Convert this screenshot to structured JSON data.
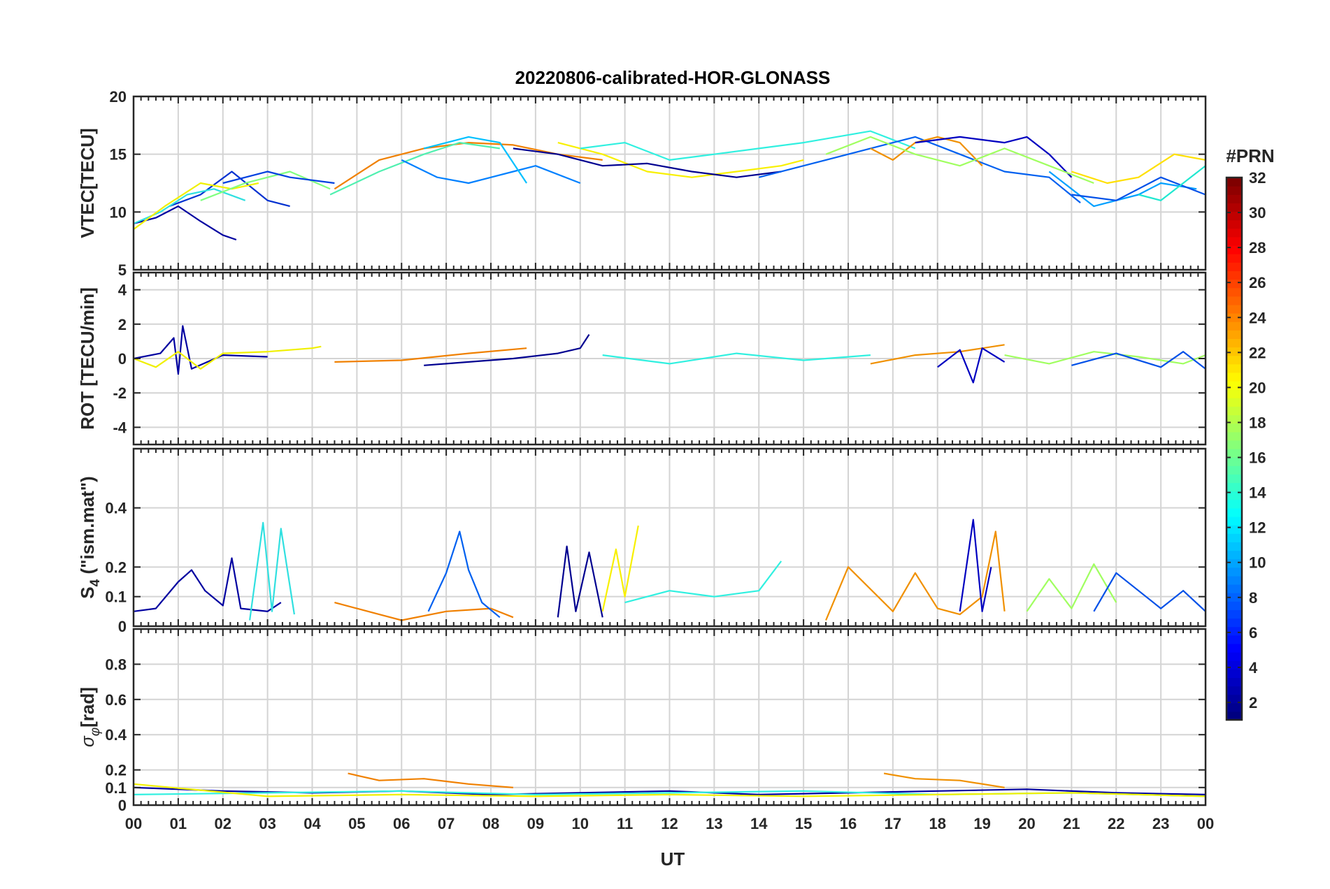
{
  "chart_data": {
    "type": "line",
    "title": "20220806-calibrated-HOR-GLONASS",
    "xlabel": "UT",
    "x_ticks": [
      "00",
      "01",
      "02",
      "03",
      "04",
      "05",
      "06",
      "07",
      "08",
      "09",
      "10",
      "11",
      "12",
      "13",
      "14",
      "15",
      "16",
      "17",
      "18",
      "19",
      "20",
      "21",
      "22",
      "23",
      "00"
    ],
    "xlim_hours": [
      0,
      24
    ],
    "grid": true,
    "colorbar": {
      "label": "#PRN",
      "range": [
        1,
        32
      ],
      "ticks": [
        "2",
        "4",
        "6",
        "8",
        "10",
        "12",
        "14",
        "16",
        "18",
        "20",
        "22",
        "24",
        "26",
        "28",
        "30",
        "32"
      ],
      "colormap": "jet"
    },
    "panels": [
      {
        "id": "vtec",
        "ylabel": "VTEC[TECU]",
        "ylim": [
          5,
          20
        ],
        "y_ticks": [
          "5",
          "10",
          "15",
          "20"
        ],
        "y_tick_values": [
          5,
          10,
          15,
          20
        ],
        "series": [
          {
            "prn": 2,
            "color": "#0000A0",
            "x": [
              0.0,
              0.5,
              1.0,
              1.5,
              2.0,
              2.3
            ],
            "y": [
              9.0,
              9.5,
              10.5,
              9.2,
              8.0,
              7.6
            ]
          },
          {
            "prn": 5,
            "color": "#0030D0",
            "x": [
              0.8,
              1.5,
              2.2,
              3.0,
              3.5
            ],
            "y": [
              10.5,
              11.5,
              13.5,
              11.0,
              10.5
            ]
          },
          {
            "prn": 12,
            "color": "#30E0E0",
            "x": [
              0.0,
              0.6,
              1.2,
              1.8,
              2.5
            ],
            "y": [
              9.0,
              10.0,
              11.5,
              12.0,
              11.0
            ]
          },
          {
            "prn": 19,
            "color": "#F0F000",
            "x": [
              0.0,
              0.7,
              1.5,
              2.2,
              2.8
            ],
            "y": [
              8.5,
              10.5,
              12.5,
              12.0,
              12.5
            ]
          },
          {
            "prn": 16,
            "color": "#80FF80",
            "x": [
              1.5,
              2.5,
              3.5,
              4.4
            ],
            "y": [
              11.0,
              12.5,
              13.5,
              12.0
            ]
          },
          {
            "prn": 4,
            "color": "#0040E0",
            "x": [
              2.0,
              3.0,
              3.5,
              4.5
            ],
            "y": [
              12.5,
              13.5,
              13.0,
              12.5
            ]
          },
          {
            "prn": 24,
            "color": "#F08000",
            "x": [
              4.5,
              5.5,
              6.5,
              7.5,
              8.5,
              9.5,
              10.5
            ],
            "y": [
              12.0,
              14.5,
              15.5,
              16.0,
              15.8,
              15.0,
              14.5
            ]
          },
          {
            "prn": 15,
            "color": "#50F0B0",
            "x": [
              4.4,
              5.5,
              6.5,
              7.3,
              8.2
            ],
            "y": [
              11.5,
              13.5,
              15.0,
              16.0,
              15.5
            ]
          },
          {
            "prn": 9,
            "color": "#0080FF",
            "x": [
              6.0,
              6.8,
              7.5,
              8.5,
              9.0,
              10.0
            ],
            "y": [
              14.5,
              13.0,
              12.5,
              13.5,
              14.0,
              12.5
            ]
          },
          {
            "prn": 11,
            "color": "#00C0FF",
            "x": [
              6.5,
              7.5,
              8.2,
              8.8
            ],
            "y": [
              15.5,
              16.5,
              16.0,
              12.5
            ]
          },
          {
            "prn": 20,
            "color": "#F8F000",
            "x": [
              9.5,
              10.5,
              11.5,
              12.5,
              13.5,
              14.5,
              15.0
            ],
            "y": [
              16.0,
              15.0,
              13.5,
              13.0,
              13.5,
              14.0,
              14.5
            ]
          },
          {
            "prn": 13,
            "color": "#30F0E0",
            "x": [
              10.0,
              11.0,
              12.0,
              13.0,
              14.0,
              15.0,
              16.5,
              17.5
            ],
            "y": [
              15.5,
              16.0,
              14.5,
              15.0,
              15.5,
              16.0,
              17.0,
              15.5
            ]
          },
          {
            "prn": 1,
            "color": "#000090",
            "x": [
              8.5,
              9.5,
              10.5,
              11.5,
              12.5,
              13.5,
              14.5
            ],
            "y": [
              15.5,
              15.0,
              14.0,
              14.2,
              13.5,
              13.0,
              13.5
            ]
          },
          {
            "prn": 7,
            "color": "#0060F0",
            "x": [
              14.0,
              15.5,
              16.5,
              17.5,
              18.5,
              19.5,
              20.5,
              21.2
            ],
            "y": [
              13.0,
              14.5,
              15.5,
              16.5,
              15.0,
              13.5,
              13.0,
              10.8
            ]
          },
          {
            "prn": 23,
            "color": "#F09000",
            "x": [
              16.5,
              17.0,
              17.5,
              18.0,
              18.5,
              19.0
            ],
            "y": [
              15.5,
              14.5,
              16.0,
              16.5,
              16.0,
              14.0
            ]
          },
          {
            "prn": 3,
            "color": "#0000C0",
            "x": [
              17.5,
              18.5,
              19.5,
              20.0,
              20.5,
              21.0
            ],
            "y": [
              16.0,
              16.5,
              16.0,
              16.5,
              15.0,
              13.0
            ]
          },
          {
            "prn": 17,
            "color": "#A0FF60",
            "x": [
              15.5,
              16.5,
              17.5,
              18.5,
              19.5,
              20.5,
              21.5
            ],
            "y": [
              15.0,
              16.5,
              15.0,
              14.0,
              15.5,
              14.0,
              12.5
            ]
          },
          {
            "prn": 10,
            "color": "#00A0FF",
            "x": [
              20.5,
              21.5,
              22.5,
              23.0,
              23.8
            ],
            "y": [
              13.5,
              10.5,
              11.5,
              12.5,
              12.0
            ]
          },
          {
            "prn": 6,
            "color": "#0050E8",
            "x": [
              21.0,
              22.0,
              23.0,
              24.0
            ],
            "y": [
              11.5,
              11.0,
              13.0,
              11.5
            ]
          },
          {
            "prn": 21,
            "color": "#FFE000",
            "x": [
              21.0,
              21.8,
              22.5,
              23.3,
              24.0
            ],
            "y": [
              13.5,
              12.5,
              13.0,
              15.0,
              14.5
            ]
          },
          {
            "prn": 14,
            "color": "#20E8D0",
            "x": [
              22.5,
              23.0,
              23.5,
              24.0
            ],
            "y": [
              11.5,
              11.0,
              12.5,
              14.0
            ]
          }
        ]
      },
      {
        "id": "rot",
        "ylabel": "ROT [TECU/min]",
        "ylim": [
          -5,
          5
        ],
        "y_ticks": [
          "-4",
          "-2",
          "0",
          "2",
          "4"
        ],
        "y_tick_values": [
          -4,
          -2,
          0,
          2,
          4
        ],
        "series": [
          {
            "prn": 2,
            "color": "#0000A0",
            "x": [
              0.0,
              0.6,
              0.9,
              1.0,
              1.1,
              1.3,
              2.0,
              3.0
            ],
            "y": [
              0.0,
              0.3,
              1.2,
              -0.9,
              1.9,
              -0.6,
              0.2,
              0.1
            ]
          },
          {
            "prn": 19,
            "color": "#F0F000",
            "x": [
              0.0,
              0.5,
              1.0,
              1.5,
              2.0,
              3.0,
              4.0,
              4.2
            ],
            "y": [
              0.0,
              -0.5,
              0.4,
              -0.6,
              0.3,
              0.4,
              0.6,
              0.7
            ]
          },
          {
            "prn": 24,
            "color": "#F08000",
            "x": [
              4.5,
              6.0,
              7.5,
              8.8
            ],
            "y": [
              -0.2,
              -0.1,
              0.3,
              0.6
            ]
          },
          {
            "prn": 1,
            "color": "#000090",
            "x": [
              6.5,
              7.5,
              8.5,
              9.5,
              10.0,
              10.2
            ],
            "y": [
              -0.4,
              -0.2,
              0.0,
              0.3,
              0.6,
              1.4
            ]
          },
          {
            "prn": 13,
            "color": "#30F0E0",
            "x": [
              10.5,
              12.0,
              13.5,
              15.0,
              16.5
            ],
            "y": [
              0.2,
              -0.3,
              0.3,
              -0.1,
              0.2
            ]
          },
          {
            "prn": 23,
            "color": "#F09000",
            "x": [
              16.5,
              17.5,
              18.5,
              19.5
            ],
            "y": [
              -0.3,
              0.2,
              0.4,
              0.8
            ]
          },
          {
            "prn": 3,
            "color": "#0000C0",
            "x": [
              18.0,
              18.5,
              18.8,
              19.0,
              19.5
            ],
            "y": [
              -0.5,
              0.5,
              -1.4,
              0.6,
              -0.2
            ]
          },
          {
            "prn": 17,
            "color": "#A0FF60",
            "x": [
              19.5,
              20.5,
              21.5,
              22.5,
              23.5,
              24.0
            ],
            "y": [
              0.2,
              -0.3,
              0.4,
              0.1,
              -0.3,
              0.2
            ]
          },
          {
            "prn": 6,
            "color": "#0050E8",
            "x": [
              21.0,
              22.0,
              23.0,
              23.5,
              24.0
            ],
            "y": [
              -0.4,
              0.3,
              -0.5,
              0.4,
              -0.6
            ]
          }
        ]
      },
      {
        "id": "s4",
        "ylabel": "S4 (\"ism.mat\")",
        "ylim": [
          0,
          0.6
        ],
        "y_ticks": [
          "0",
          "0.1",
          "0.2",
          "0.4"
        ],
        "y_tick_values": [
          0,
          0.1,
          0.2,
          0.4
        ],
        "series": [
          {
            "prn": 2,
            "color": "#0000A0",
            "x": [
              0.0,
              0.5,
              1.0,
              1.3,
              1.6,
              2.0,
              2.2,
              2.4,
              3.0,
              3.3
            ],
            "y": [
              0.05,
              0.06,
              0.15,
              0.19,
              0.12,
              0.07,
              0.23,
              0.06,
              0.05,
              0.08
            ]
          },
          {
            "prn": 12,
            "color": "#30E0E0",
            "x": [
              2.6,
              2.9,
              3.1,
              3.3,
              3.6
            ],
            "y": [
              0.02,
              0.35,
              0.05,
              0.33,
              0.04
            ]
          },
          {
            "prn": 24,
            "color": "#F08000",
            "x": [
              4.5,
              5.0,
              5.5,
              6.0,
              7.0,
              8.0,
              8.5
            ],
            "y": [
              0.08,
              0.06,
              0.04,
              0.02,
              0.05,
              0.06,
              0.03
            ]
          },
          {
            "prn": 7,
            "color": "#0060F0",
            "x": [
              6.6,
              7.0,
              7.3,
              7.5,
              7.8,
              8.2
            ],
            "y": [
              0.05,
              0.18,
              0.32,
              0.19,
              0.08,
              0.03
            ]
          },
          {
            "prn": 1,
            "color": "#000090",
            "x": [
              9.5,
              9.7,
              9.9,
              10.2,
              10.5
            ],
            "y": [
              0.03,
              0.27,
              0.05,
              0.25,
              0.03
            ]
          },
          {
            "prn": 20,
            "color": "#F8F000",
            "x": [
              10.5,
              10.8,
              11.0,
              11.3
            ],
            "y": [
              0.05,
              0.26,
              0.1,
              0.34
            ]
          },
          {
            "prn": 13,
            "color": "#30F0E0",
            "x": [
              11.0,
              12.0,
              13.0,
              14.0,
              14.5
            ],
            "y": [
              0.08,
              0.12,
              0.1,
              0.12,
              0.22
            ]
          },
          {
            "prn": 23,
            "color": "#F09000",
            "x": [
              15.5,
              16.0,
              17.0,
              17.5,
              18.0,
              18.5,
              19.0,
              19.3,
              19.5
            ],
            "y": [
              0.02,
              0.2,
              0.05,
              0.18,
              0.06,
              0.04,
              0.1,
              0.32,
              0.05
            ]
          },
          {
            "prn": 3,
            "color": "#0000C0",
            "x": [
              18.5,
              18.8,
              19.0,
              19.2
            ],
            "y": [
              0.05,
              0.36,
              0.05,
              0.2
            ]
          },
          {
            "prn": 17,
            "color": "#A0FF60",
            "x": [
              20.0,
              20.5,
              21.0,
              21.5,
              22.0
            ],
            "y": [
              0.05,
              0.16,
              0.06,
              0.21,
              0.08
            ]
          },
          {
            "prn": 6,
            "color": "#0050E8",
            "x": [
              21.5,
              22.0,
              22.5,
              23.0,
              23.5,
              24.0
            ],
            "y": [
              0.05,
              0.18,
              0.12,
              0.06,
              0.12,
              0.05
            ]
          }
        ]
      },
      {
        "id": "sigma",
        "ylabel": "σφ[rad]",
        "ylim": [
          0,
          1
        ],
        "y_ticks": [
          "0",
          "0.1",
          "0.2",
          "0.4",
          "0.6",
          "0.8"
        ],
        "y_tick_values": [
          0,
          0.1,
          0.2,
          0.4,
          0.6,
          0.8
        ],
        "series": [
          {
            "prn": 2,
            "color": "#0000A0",
            "x": [
              0.0,
              2.0,
              4.0,
              6.0,
              8.0,
              10.0,
              12.0,
              14.0,
              16.0,
              18.0,
              20.0,
              22.0,
              24.0
            ],
            "y": [
              0.1,
              0.08,
              0.07,
              0.08,
              0.06,
              0.07,
              0.08,
              0.06,
              0.07,
              0.08,
              0.09,
              0.07,
              0.06
            ]
          },
          {
            "prn": 24,
            "color": "#F08000",
            "x": [
              4.8,
              5.5,
              6.5,
              7.5,
              8.5
            ],
            "y": [
              0.18,
              0.14,
              0.15,
              0.12,
              0.1
            ]
          },
          {
            "prn": 23,
            "color": "#F09000",
            "x": [
              16.8,
              17.5,
              18.5,
              19.5
            ],
            "y": [
              0.18,
              0.15,
              0.14,
              0.1
            ]
          },
          {
            "prn": 13,
            "color": "#30F0E0",
            "x": [
              0.0,
              3.0,
              6.0,
              9.0,
              12.0,
              15.0,
              18.0,
              21.0,
              24.0
            ],
            "y": [
              0.06,
              0.07,
              0.08,
              0.06,
              0.07,
              0.08,
              0.06,
              0.07,
              0.05
            ]
          },
          {
            "prn": 19,
            "color": "#F0F000",
            "x": [
              0.0,
              3.0,
              6.0,
              9.0,
              12.0,
              15.0,
              18.0,
              21.0,
              24.0
            ],
            "y": [
              0.12,
              0.05,
              0.06,
              0.05,
              0.06,
              0.05,
              0.06,
              0.07,
              0.05
            ]
          }
        ]
      }
    ]
  }
}
